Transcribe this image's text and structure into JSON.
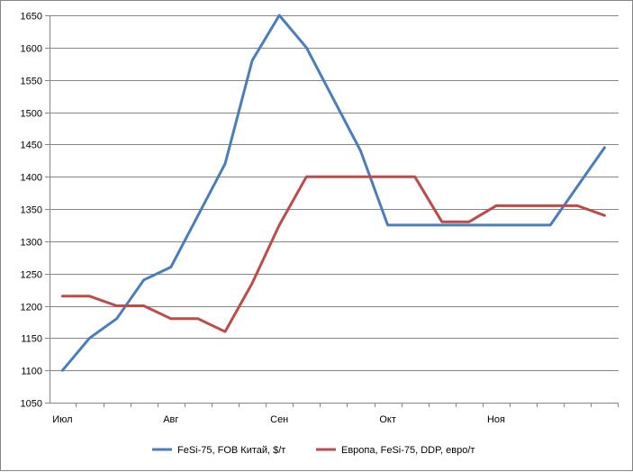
{
  "chart_data": {
    "type": "line",
    "categories": [
      "Июл",
      "",
      "",
      "",
      "Авг",
      "",
      "",
      "",
      "Сен",
      "",
      "",
      "",
      "Окт",
      "",
      "",
      "",
      "Ноя",
      "",
      "",
      "",
      ""
    ],
    "x_tick_labels": [
      "Июл",
      "Авг",
      "Сен",
      "Окт",
      "Ноя"
    ],
    "ylim": [
      1050,
      1650
    ],
    "y_ticks": [
      1050,
      1100,
      1150,
      1200,
      1250,
      1300,
      1350,
      1400,
      1450,
      1500,
      1550,
      1600,
      1650
    ],
    "grid": true,
    "legend_position": "bottom",
    "series": [
      {
        "name": "FeSi-75, FOB Китай, $/т",
        "color": "#4a7ebb",
        "values": [
          1100,
          1150,
          1180,
          1240,
          1260,
          1340,
          1420,
          1580,
          1650,
          1600,
          1520,
          1440,
          1325,
          1325,
          1325,
          1325,
          1325,
          1325,
          1325,
          1385,
          1445
        ]
      },
      {
        "name": "Европа, FeSi-75, DDP, евро/т",
        "color": "#be4b48",
        "values": [
          1215,
          1215,
          1200,
          1200,
          1180,
          1180,
          1160,
          1235,
          1325,
          1400,
          1400,
          1400,
          1400,
          1400,
          1330,
          1330,
          1355,
          1355,
          1355,
          1355,
          1340
        ]
      }
    ]
  }
}
